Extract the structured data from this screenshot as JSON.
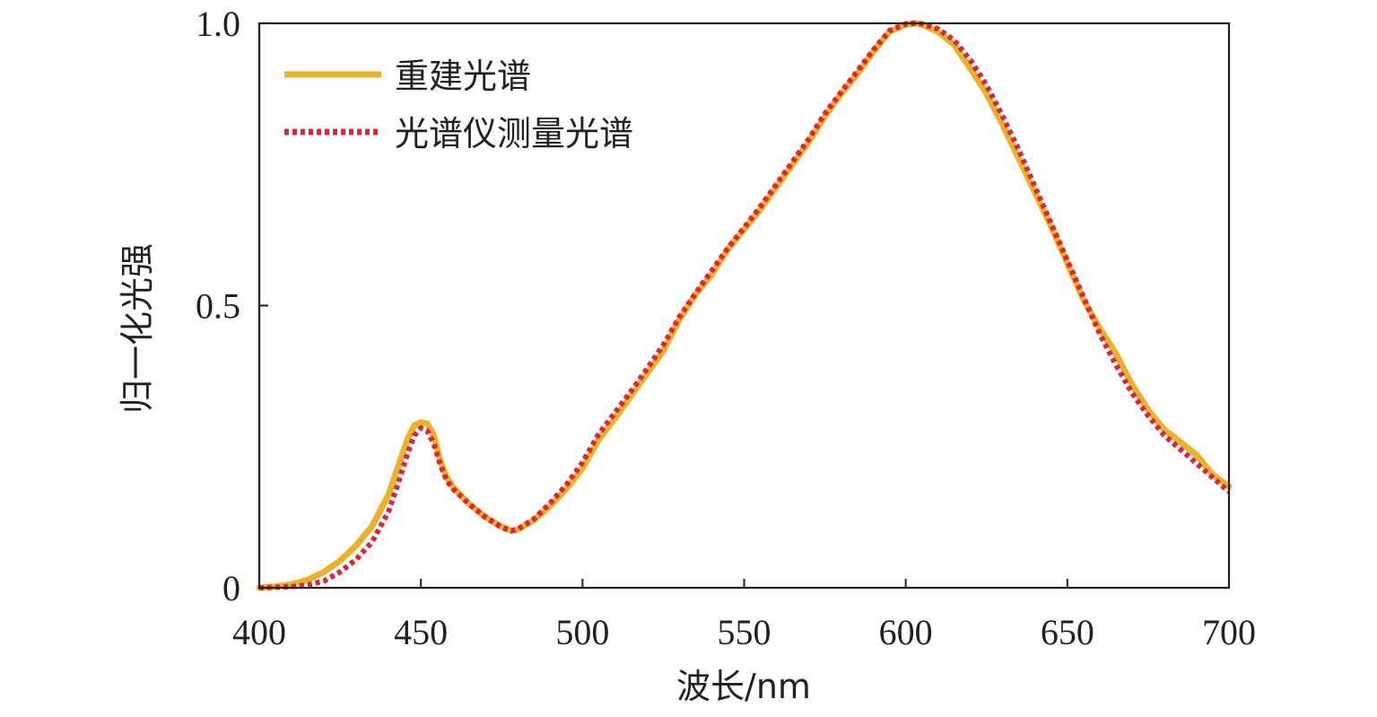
{
  "chart_data": {
    "type": "line",
    "title": "",
    "xlabel": "波长/nm",
    "ylabel": "归一化光强",
    "xlim": [
      400,
      700
    ],
    "ylim": [
      0,
      1.0
    ],
    "x_ticks": [
      400,
      450,
      500,
      550,
      600,
      650,
      700
    ],
    "x_tick_labels": [
      "400",
      "450",
      "500",
      "550",
      "600",
      "650",
      "700"
    ],
    "y_ticks": [
      0,
      0.5,
      1.0
    ],
    "y_tick_labels": [
      "0",
      "0.5",
      "1.0"
    ],
    "grid": false,
    "legend_position": "top-left",
    "series": [
      {
        "name": "重建光谱",
        "color": "#e8b22e",
        "style": "solid",
        "x": [
          400,
          405,
          410,
          415,
          420,
          425,
          430,
          435,
          440,
          443,
          446,
          448,
          450,
          452,
          454,
          456,
          458,
          460,
          465,
          470,
          475,
          478,
          480,
          485,
          490,
          495,
          500,
          505,
          510,
          515,
          520,
          525,
          530,
          535,
          540,
          545,
          550,
          555,
          560,
          565,
          570,
          575,
          580,
          585,
          590,
          595,
          600,
          603,
          605,
          610,
          615,
          620,
          625,
          630,
          635,
          640,
          645,
          650,
          655,
          660,
          665,
          670,
          675,
          680,
          685,
          690,
          695,
          700
        ],
        "y": [
          0.0,
          0.002,
          0.006,
          0.014,
          0.028,
          0.048,
          0.075,
          0.11,
          0.165,
          0.215,
          0.265,
          0.288,
          0.293,
          0.291,
          0.27,
          0.225,
          0.195,
          0.178,
          0.148,
          0.125,
          0.108,
          0.101,
          0.103,
          0.12,
          0.145,
          0.175,
          0.212,
          0.262,
          0.3,
          0.34,
          0.38,
          0.42,
          0.475,
          0.52,
          0.555,
          0.6,
          0.635,
          0.67,
          0.71,
          0.75,
          0.79,
          0.835,
          0.875,
          0.91,
          0.95,
          0.985,
          0.998,
          1.0,
          0.998,
          0.985,
          0.962,
          0.92,
          0.875,
          0.82,
          0.76,
          0.7,
          0.64,
          0.575,
          0.51,
          0.46,
          0.415,
          0.36,
          0.315,
          0.28,
          0.258,
          0.235,
          0.2,
          0.18
        ]
      },
      {
        "name": "光谱仪测量光谱",
        "color": "#d8263a",
        "style": "dotted",
        "x": [
          400,
          405,
          410,
          415,
          420,
          425,
          430,
          435,
          440,
          443,
          446,
          448,
          450,
          452,
          454,
          456,
          458,
          460,
          465,
          470,
          475,
          478,
          480,
          485,
          490,
          495,
          500,
          505,
          510,
          515,
          520,
          525,
          530,
          535,
          540,
          545,
          550,
          555,
          560,
          565,
          570,
          575,
          580,
          585,
          590,
          595,
          600,
          603,
          605,
          610,
          615,
          620,
          625,
          630,
          635,
          640,
          645,
          650,
          655,
          660,
          665,
          670,
          675,
          680,
          685,
          690,
          695,
          700
        ],
        "y": [
          0.0,
          0.001,
          0.002,
          0.005,
          0.012,
          0.028,
          0.05,
          0.082,
          0.135,
          0.185,
          0.24,
          0.27,
          0.283,
          0.278,
          0.255,
          0.218,
          0.19,
          0.175,
          0.148,
          0.125,
          0.107,
          0.101,
          0.104,
          0.122,
          0.15,
          0.182,
          0.222,
          0.272,
          0.31,
          0.348,
          0.388,
          0.43,
          0.48,
          0.522,
          0.562,
          0.602,
          0.638,
          0.675,
          0.715,
          0.755,
          0.795,
          0.84,
          0.878,
          0.915,
          0.953,
          0.987,
          0.999,
          1.0,
          0.999,
          0.99,
          0.97,
          0.935,
          0.89,
          0.835,
          0.775,
          0.71,
          0.645,
          0.58,
          0.515,
          0.45,
          0.395,
          0.345,
          0.305,
          0.27,
          0.245,
          0.22,
          0.195,
          0.17
        ]
      }
    ]
  }
}
